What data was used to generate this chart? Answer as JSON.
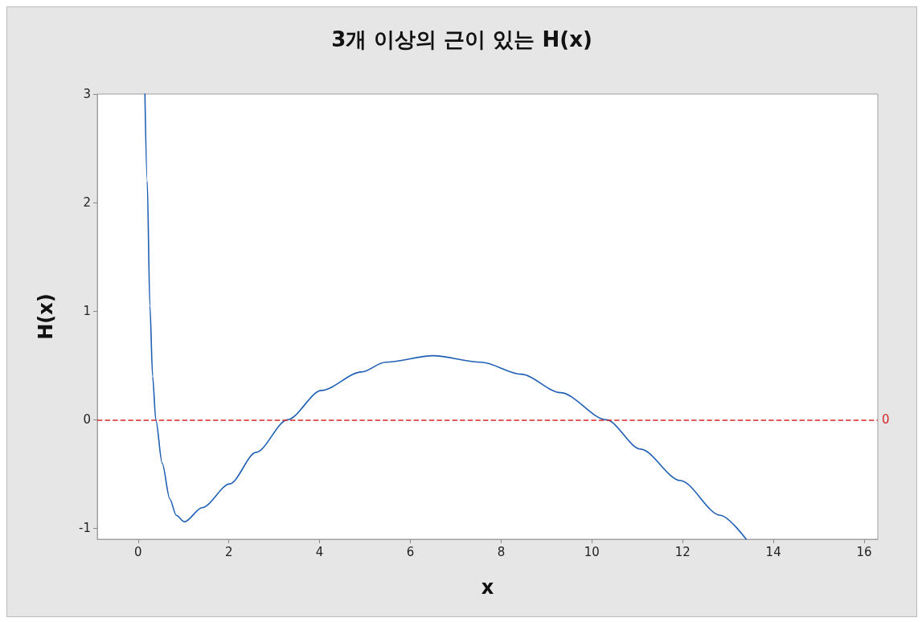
{
  "chart_data": {
    "type": "line",
    "title": "3개 이상의 근이 있는 H(x)",
    "xlabel": "x",
    "ylabel": "H(x)",
    "x": [
      0.15,
      0.2,
      0.26,
      0.32,
      0.39,
      0.53,
      0.7,
      0.84,
      1.02,
      1.41,
      2.02,
      2.6,
      3.29,
      4.04,
      4.92,
      5.45,
      6.5,
      7.56,
      8.44,
      9.31,
      10.32,
      11.07,
      11.95,
      12.83,
      13.4
    ],
    "series": [
      {
        "color": "#1f5fb4",
        "values": [
          3,
          2.2,
          1.05,
          0.4,
          0,
          -0.4,
          -0.73,
          -0.88,
          -0.94,
          -0.81,
          -0.59,
          -0.3,
          0,
          0.27,
          0.44,
          0.53,
          0.59,
          0.53,
          0.42,
          0.25,
          0,
          -0.27,
          -0.56,
          -0.88,
          -1.1
        ]
      }
    ],
    "xlim": [
      -0.9,
      16.3
    ],
    "ylim": [
      -1.1,
      3
    ],
    "xticks": [
      0,
      2,
      4,
      6,
      8,
      10,
      12,
      14,
      16
    ],
    "yticks": [
      -1,
      0,
      1,
      2,
      3
    ],
    "ref_lines": [
      {
        "axis": "y",
        "value": 0,
        "label": "0",
        "color": "#d62728",
        "line_style": "dashed"
      }
    ],
    "grid": false,
    "marker": "none",
    "line_style": "solid"
  }
}
